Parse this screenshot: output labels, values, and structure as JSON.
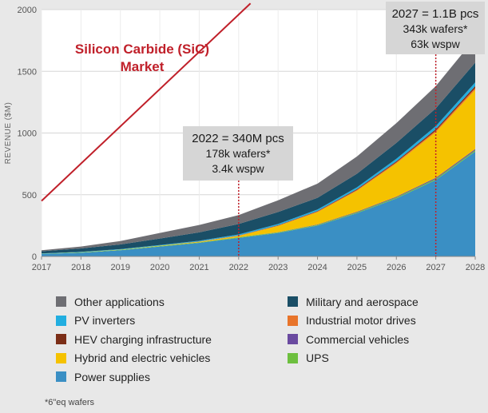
{
  "chart_data": {
    "type": "area",
    "stacked": true,
    "x": [
      2017,
      2018,
      2019,
      2020,
      2021,
      2022,
      2023,
      2024,
      2025,
      2026,
      2027,
      2028
    ],
    "ylabel": "REVENUE ($M)",
    "ylim": [
      0,
      2000
    ],
    "yticks": [
      0,
      500,
      1000,
      1500,
      2000
    ],
    "grid": true,
    "legend_position": "bottom",
    "series": [
      {
        "name": "Power supplies",
        "color": "#3a8fc4",
        "values": [
          20,
          30,
          50,
          80,
          110,
          150,
          190,
          250,
          350,
          470,
          620,
          850
        ]
      },
      {
        "name": "UPS",
        "color": "#6dbf3f",
        "values": [
          2,
          3,
          3,
          4,
          4,
          5,
          5,
          6,
          7,
          8,
          9,
          10
        ]
      },
      {
        "name": "Commercial vehicles",
        "color": "#6a4aa0",
        "values": [
          0,
          0,
          0,
          0,
          0,
          1,
          2,
          3,
          5,
          6,
          8,
          10
        ]
      },
      {
        "name": "Hybrid and electric vehicles",
        "color": "#f5c200",
        "values": [
          0,
          1,
          2,
          3,
          5,
          10,
          50,
          100,
          170,
          270,
          370,
          480
        ]
      },
      {
        "name": "Industrial motor drives",
        "color": "#e8742a",
        "values": [
          0,
          0,
          0,
          0,
          1,
          2,
          3,
          5,
          7,
          9,
          12,
          15
        ]
      },
      {
        "name": "HEV charging infrastructure",
        "color": "#7b2e17",
        "values": [
          0,
          0,
          0,
          0,
          1,
          2,
          3,
          4,
          6,
          8,
          12,
          15
        ]
      },
      {
        "name": "PV inverters",
        "color": "#22aee0",
        "values": [
          2,
          3,
          4,
          5,
          6,
          8,
          10,
          12,
          15,
          20,
          25,
          30
        ]
      },
      {
        "name": "Military and aerospace",
        "color": "#1a4e66",
        "values": [
          18,
          28,
          38,
          53,
          68,
          85,
          97,
          95,
          110,
          129,
          144,
          160
        ]
      },
      {
        "name": "Other applications",
        "color": "#6e6e73",
        "values": [
          8,
          15,
          28,
          45,
          60,
          72,
          95,
          115,
          140,
          160,
          180,
          200
        ]
      }
    ],
    "legend": [
      [
        "Other applications",
        "Military and aerospace"
      ],
      [
        "PV inverters",
        "Industrial motor drives"
      ],
      [
        "HEV charging infrastructure",
        "Commercial vehicles"
      ],
      [
        "Hybrid and electric vehicles",
        "UPS"
      ],
      [
        "Power supplies",
        ""
      ]
    ],
    "trend_line": {
      "label": [
        "Silicon Carbide (SiC)",
        "Market"
      ],
      "color": "#c0202a",
      "from": [
        2017,
        450
      ],
      "to": [
        2022.3,
        2050
      ]
    },
    "annotations": [
      {
        "x": 2022,
        "lines": [
          "2022 = 340M pcs",
          "178k wafers*",
          "3.4k wspw"
        ]
      },
      {
        "x": 2027,
        "lines": [
          "2027 = 1.1B pcs",
          "343k wafers*",
          "63k wspw"
        ]
      }
    ],
    "footnote": "*6\"eq wafers"
  }
}
